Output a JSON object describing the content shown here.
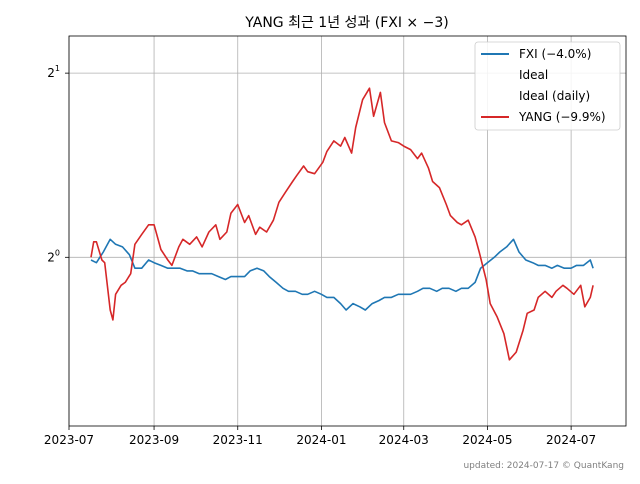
{
  "chart_data": {
    "type": "line",
    "title": "YANG 최근 1년 성과 (FXI × −3)",
    "xlabel": "",
    "ylabel": "",
    "y_scale": "log2",
    "ylim": [
      0.53,
      2.3
    ],
    "xlim": [
      "2023-07-01",
      "2024-08-10"
    ],
    "grid": true,
    "legend_position": "top-right",
    "x_ticks": [
      "2023-07-01",
      "2023-09-01",
      "2023-11-01",
      "2024-01-01",
      "2024-03-01",
      "2024-05-01",
      "2024-07-01"
    ],
    "x_tick_labels": [
      "2023-07",
      "2023-09",
      "2023-11",
      "2024-01",
      "2024-03",
      "2024-05",
      "2024-07"
    ],
    "y_ticks": [
      1,
      2
    ],
    "y_tick_labels": [
      {
        "base": "2",
        "exp": "0"
      },
      {
        "base": "2",
        "exp": "1"
      }
    ],
    "legend": [
      {
        "label": "FXI (−4.0%)",
        "color": "#1f77b4"
      },
      {
        "label": "Ideal",
        "color": "none"
      },
      {
        "label": "Ideal (daily)",
        "color": "none"
      },
      {
        "label": "YANG (−9.9%)",
        "color": "#d62728"
      }
    ],
    "series": [
      {
        "name": "FXI (−4.0%)",
        "color": "#1f77b4",
        "points": [
          [
            "2023-07-17",
            0.99
          ],
          [
            "2023-07-21",
            0.98
          ],
          [
            "2023-07-26",
            1.02
          ],
          [
            "2023-07-31",
            1.07
          ],
          [
            "2023-08-04",
            1.05
          ],
          [
            "2023-08-09",
            1.04
          ],
          [
            "2023-08-14",
            1.01
          ],
          [
            "2023-08-18",
            0.96
          ],
          [
            "2023-08-23",
            0.96
          ],
          [
            "2023-08-28",
            0.99
          ],
          [
            "2023-09-01",
            0.98
          ],
          [
            "2023-09-06",
            0.97
          ],
          [
            "2023-09-11",
            0.96
          ],
          [
            "2023-09-15",
            0.96
          ],
          [
            "2023-09-20",
            0.96
          ],
          [
            "2023-09-25",
            0.95
          ],
          [
            "2023-09-29",
            0.95
          ],
          [
            "2023-10-04",
            0.94
          ],
          [
            "2023-10-09",
            0.94
          ],
          [
            "2023-10-13",
            0.94
          ],
          [
            "2023-10-18",
            0.93
          ],
          [
            "2023-10-23",
            0.92
          ],
          [
            "2023-10-27",
            0.93
          ],
          [
            "2023-11-01",
            0.93
          ],
          [
            "2023-11-06",
            0.93
          ],
          [
            "2023-11-10",
            0.95
          ],
          [
            "2023-11-15",
            0.96
          ],
          [
            "2023-11-20",
            0.95
          ],
          [
            "2023-11-24",
            0.93
          ],
          [
            "2023-11-29",
            0.91
          ],
          [
            "2023-12-04",
            0.89
          ],
          [
            "2023-12-08",
            0.88
          ],
          [
            "2023-12-13",
            0.88
          ],
          [
            "2023-12-18",
            0.87
          ],
          [
            "2023-12-22",
            0.87
          ],
          [
            "2023-12-27",
            0.88
          ],
          [
            "2024-01-01",
            0.87
          ],
          [
            "2024-01-05",
            0.86
          ],
          [
            "2024-01-10",
            0.86
          ],
          [
            "2024-01-15",
            0.84
          ],
          [
            "2024-01-19",
            0.82
          ],
          [
            "2024-01-24",
            0.84
          ],
          [
            "2024-01-29",
            0.83
          ],
          [
            "2024-02-02",
            0.82
          ],
          [
            "2024-02-07",
            0.84
          ],
          [
            "2024-02-12",
            0.85
          ],
          [
            "2024-02-16",
            0.86
          ],
          [
            "2024-02-21",
            0.86
          ],
          [
            "2024-02-26",
            0.87
          ],
          [
            "2024-03-01",
            0.87
          ],
          [
            "2024-03-06",
            0.87
          ],
          [
            "2024-03-11",
            0.88
          ],
          [
            "2024-03-15",
            0.89
          ],
          [
            "2024-03-20",
            0.89
          ],
          [
            "2024-03-25",
            0.88
          ],
          [
            "2024-03-29",
            0.89
          ],
          [
            "2024-04-03",
            0.89
          ],
          [
            "2024-04-08",
            0.88
          ],
          [
            "2024-04-12",
            0.89
          ],
          [
            "2024-04-17",
            0.89
          ],
          [
            "2024-04-22",
            0.91
          ],
          [
            "2024-04-26",
            0.96
          ],
          [
            "2024-05-01",
            0.98
          ],
          [
            "2024-05-06",
            1.0
          ],
          [
            "2024-05-10",
            1.02
          ],
          [
            "2024-05-15",
            1.04
          ],
          [
            "2024-05-20",
            1.07
          ],
          [
            "2024-05-24",
            1.02
          ],
          [
            "2024-05-29",
            0.99
          ],
          [
            "2024-06-03",
            0.98
          ],
          [
            "2024-06-07",
            0.97
          ],
          [
            "2024-06-12",
            0.97
          ],
          [
            "2024-06-17",
            0.96
          ],
          [
            "2024-06-21",
            0.97
          ],
          [
            "2024-06-26",
            0.96
          ],
          [
            "2024-07-01",
            0.96
          ],
          [
            "2024-07-05",
            0.97
          ],
          [
            "2024-07-10",
            0.97
          ],
          [
            "2024-07-15",
            0.99
          ],
          [
            "2024-07-17",
            0.96
          ]
        ]
      },
      {
        "name": "YANG (−9.9%)",
        "color": "#d62728",
        "points": [
          [
            "2023-07-17",
            1.0
          ],
          [
            "2023-07-19",
            1.06
          ],
          [
            "2023-07-21",
            1.06
          ],
          [
            "2023-07-25",
            0.99
          ],
          [
            "2023-07-27",
            0.98
          ],
          [
            "2023-07-31",
            0.82
          ],
          [
            "2023-08-02",
            0.79
          ],
          [
            "2023-08-04",
            0.87
          ],
          [
            "2023-08-08",
            0.9
          ],
          [
            "2023-08-11",
            0.91
          ],
          [
            "2023-08-15",
            0.94
          ],
          [
            "2023-08-18",
            1.05
          ],
          [
            "2023-08-23",
            1.09
          ],
          [
            "2023-08-28",
            1.13
          ],
          [
            "2023-09-01",
            1.13
          ],
          [
            "2023-09-06",
            1.03
          ],
          [
            "2023-09-11",
            0.99
          ],
          [
            "2023-09-14",
            0.97
          ],
          [
            "2023-09-19",
            1.04
          ],
          [
            "2023-09-22",
            1.07
          ],
          [
            "2023-09-27",
            1.05
          ],
          [
            "2023-10-02",
            1.08
          ],
          [
            "2023-10-06",
            1.04
          ],
          [
            "2023-10-11",
            1.1
          ],
          [
            "2023-10-16",
            1.13
          ],
          [
            "2023-10-19",
            1.07
          ],
          [
            "2023-10-24",
            1.1
          ],
          [
            "2023-10-27",
            1.18
          ],
          [
            "2023-11-01",
            1.22
          ],
          [
            "2023-11-06",
            1.14
          ],
          [
            "2023-11-09",
            1.17
          ],
          [
            "2023-11-14",
            1.09
          ],
          [
            "2023-11-17",
            1.12
          ],
          [
            "2023-11-22",
            1.1
          ],
          [
            "2023-11-27",
            1.15
          ],
          [
            "2023-12-01",
            1.23
          ],
          [
            "2023-12-06",
            1.28
          ],
          [
            "2023-12-11",
            1.33
          ],
          [
            "2023-12-14",
            1.36
          ],
          [
            "2023-12-19",
            1.41
          ],
          [
            "2023-12-22",
            1.38
          ],
          [
            "2023-12-27",
            1.37
          ],
          [
            "2024-01-02",
            1.43
          ],
          [
            "2024-01-05",
            1.49
          ],
          [
            "2024-01-10",
            1.55
          ],
          [
            "2024-01-15",
            1.52
          ],
          [
            "2024-01-18",
            1.57
          ],
          [
            "2024-01-23",
            1.48
          ],
          [
            "2024-01-26",
            1.63
          ],
          [
            "2024-01-31",
            1.81
          ],
          [
            "2024-02-05",
            1.89
          ],
          [
            "2024-02-08",
            1.7
          ],
          [
            "2024-02-13",
            1.86
          ],
          [
            "2024-02-16",
            1.66
          ],
          [
            "2024-02-21",
            1.55
          ],
          [
            "2024-02-26",
            1.54
          ],
          [
            "2024-03-01",
            1.52
          ],
          [
            "2024-03-06",
            1.5
          ],
          [
            "2024-03-11",
            1.45
          ],
          [
            "2024-03-14",
            1.48
          ],
          [
            "2024-03-19",
            1.4
          ],
          [
            "2024-03-22",
            1.33
          ],
          [
            "2024-03-27",
            1.3
          ],
          [
            "2024-04-01",
            1.22
          ],
          [
            "2024-04-04",
            1.17
          ],
          [
            "2024-04-09",
            1.14
          ],
          [
            "2024-04-12",
            1.13
          ],
          [
            "2024-04-17",
            1.15
          ],
          [
            "2024-04-22",
            1.08
          ],
          [
            "2024-04-25",
            1.02
          ],
          [
            "2024-04-30",
            0.92
          ],
          [
            "2024-05-03",
            0.84
          ],
          [
            "2024-05-08",
            0.8
          ],
          [
            "2024-05-13",
            0.75
          ],
          [
            "2024-05-17",
            0.68
          ],
          [
            "2024-05-22",
            0.7
          ],
          [
            "2024-05-27",
            0.76
          ],
          [
            "2024-05-30",
            0.81
          ],
          [
            "2024-06-04",
            0.82
          ],
          [
            "2024-06-07",
            0.86
          ],
          [
            "2024-06-12",
            0.88
          ],
          [
            "2024-06-17",
            0.86
          ],
          [
            "2024-06-20",
            0.88
          ],
          [
            "2024-06-25",
            0.9
          ],
          [
            "2024-06-28",
            0.89
          ],
          [
            "2024-07-03",
            0.87
          ],
          [
            "2024-07-08",
            0.9
          ],
          [
            "2024-07-11",
            0.83
          ],
          [
            "2024-07-15",
            0.86
          ],
          [
            "2024-07-17",
            0.9
          ]
        ]
      }
    ]
  },
  "footer": "updated: 2024-07-17 © QuantKang"
}
